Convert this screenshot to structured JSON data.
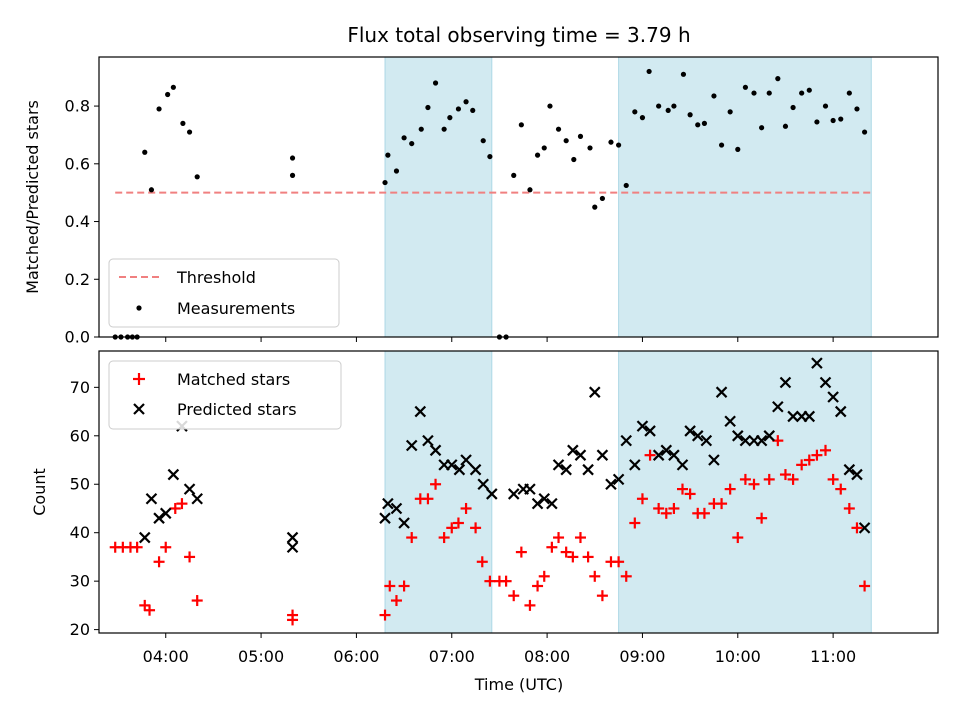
{
  "chart_data": [
    {
      "type": "scatter",
      "title": "Flux total observing time = 3.79 h",
      "ylabel": "Matched/Predicted stars",
      "xlim": [
        3.3,
        12.1
      ],
      "ylim": [
        0.0,
        0.97
      ],
      "x_ticks": [
        4,
        5,
        6,
        7,
        8,
        9,
        10,
        11
      ],
      "y_ticks": [
        0.0,
        0.2,
        0.4,
        0.6,
        0.8
      ],
      "y_tick_labels": [
        "0.0",
        "0.2",
        "0.4",
        "0.6",
        "0.8"
      ],
      "shaded_intervals": [
        [
          6.3,
          7.42
        ],
        [
          8.75,
          11.4
        ]
      ],
      "shade_color": "#add8e6",
      "legend": [
        "Threshold",
        "Measurements"
      ],
      "legend_location": "lower-left",
      "threshold": {
        "name": "Threshold",
        "value": 0.5,
        "x_range": [
          3.47,
          11.4
        ],
        "color": "#f08080"
      },
      "measurements": {
        "name": "Measurements",
        "color": "#000000",
        "points": [
          [
            3.47,
            0.0
          ],
          [
            3.53,
            0.0
          ],
          [
            3.6,
            0.0
          ],
          [
            3.65,
            0.0
          ],
          [
            3.7,
            0.0
          ],
          [
            3.78,
            0.64
          ],
          [
            3.85,
            0.51
          ],
          [
            3.93,
            0.79
          ],
          [
            4.02,
            0.84
          ],
          [
            4.08,
            0.865
          ],
          [
            4.18,
            0.74
          ],
          [
            4.25,
            0.71
          ],
          [
            4.33,
            0.555
          ],
          [
            5.33,
            0.62
          ],
          [
            5.33,
            0.56
          ],
          [
            6.3,
            0.535
          ],
          [
            6.33,
            0.63
          ],
          [
            6.42,
            0.575
          ],
          [
            6.5,
            0.69
          ],
          [
            6.58,
            0.67
          ],
          [
            6.68,
            0.72
          ],
          [
            6.75,
            0.795
          ],
          [
            6.83,
            0.88
          ],
          [
            6.92,
            0.72
          ],
          [
            6.98,
            0.76
          ],
          [
            7.07,
            0.79
          ],
          [
            7.15,
            0.815
          ],
          [
            7.22,
            0.785
          ],
          [
            7.33,
            0.68
          ],
          [
            7.4,
            0.625
          ],
          [
            7.5,
            0.0
          ],
          [
            7.57,
            0.0
          ],
          [
            7.65,
            0.56
          ],
          [
            7.73,
            0.735
          ],
          [
            7.82,
            0.51
          ],
          [
            7.9,
            0.63
          ],
          [
            7.97,
            0.655
          ],
          [
            8.03,
            0.8
          ],
          [
            8.12,
            0.72
          ],
          [
            8.2,
            0.68
          ],
          [
            8.28,
            0.615
          ],
          [
            8.35,
            0.695
          ],
          [
            8.45,
            0.655
          ],
          [
            8.5,
            0.45
          ],
          [
            8.58,
            0.48
          ],
          [
            8.67,
            0.675
          ],
          [
            8.75,
            0.665
          ],
          [
            8.83,
            0.525
          ],
          [
            8.92,
            0.78
          ],
          [
            9.0,
            0.76
          ],
          [
            9.07,
            0.92
          ],
          [
            9.17,
            0.8
          ],
          [
            9.27,
            0.785
          ],
          [
            9.33,
            0.8
          ],
          [
            9.43,
            0.91
          ],
          [
            9.5,
            0.77
          ],
          [
            9.58,
            0.735
          ],
          [
            9.65,
            0.74
          ],
          [
            9.75,
            0.835
          ],
          [
            9.83,
            0.665
          ],
          [
            9.92,
            0.78
          ],
          [
            10.0,
            0.65
          ],
          [
            10.08,
            0.865
          ],
          [
            10.17,
            0.845
          ],
          [
            10.25,
            0.725
          ],
          [
            10.33,
            0.845
          ],
          [
            10.42,
            0.895
          ],
          [
            10.5,
            0.73
          ],
          [
            10.58,
            0.795
          ],
          [
            10.67,
            0.845
          ],
          [
            10.75,
            0.855
          ],
          [
            10.83,
            0.745
          ],
          [
            10.92,
            0.8
          ],
          [
            11.0,
            0.75
          ],
          [
            11.08,
            0.755
          ],
          [
            11.17,
            0.845
          ],
          [
            11.25,
            0.79
          ],
          [
            11.33,
            0.71
          ]
        ]
      }
    },
    {
      "type": "scatter",
      "xlabel": "Time (UTC)",
      "ylabel": "Count",
      "xlim": [
        3.3,
        12.1
      ],
      "ylim": [
        19.3,
        77.5
      ],
      "x_ticks": [
        4,
        5,
        6,
        7,
        8,
        9,
        10,
        11
      ],
      "x_tick_labels": [
        "04:00",
        "05:00",
        "06:00",
        "07:00",
        "08:00",
        "09:00",
        "10:00",
        "11:00"
      ],
      "y_ticks": [
        20,
        30,
        40,
        50,
        60,
        70
      ],
      "y_tick_labels": [
        "20",
        "30",
        "40",
        "50",
        "60",
        "70"
      ],
      "shaded_intervals": [
        [
          6.3,
          7.42
        ],
        [
          8.75,
          11.4
        ]
      ],
      "shade_color": "#add8e6",
      "legend": [
        "Matched stars",
        "Predicted stars"
      ],
      "legend_location": "top-left",
      "series": [
        {
          "name": "Matched stars",
          "marker": "+",
          "color": "#ff0000",
          "points": [
            [
              3.47,
              37
            ],
            [
              3.55,
              37
            ],
            [
              3.63,
              37
            ],
            [
              3.7,
              37
            ],
            [
              3.78,
              25
            ],
            [
              3.83,
              24
            ],
            [
              3.93,
              34
            ],
            [
              4.0,
              37
            ],
            [
              4.1,
              45
            ],
            [
              4.17,
              46
            ],
            [
              4.25,
              35
            ],
            [
              4.33,
              26
            ],
            [
              5.33,
              23
            ],
            [
              5.33,
              22
            ],
            [
              6.3,
              23
            ],
            [
              6.35,
              29
            ],
            [
              6.42,
              26
            ],
            [
              6.5,
              29
            ],
            [
              6.58,
              39
            ],
            [
              6.67,
              47
            ],
            [
              6.75,
              47
            ],
            [
              6.83,
              50
            ],
            [
              6.92,
              39
            ],
            [
              7.0,
              41
            ],
            [
              7.07,
              42
            ],
            [
              7.15,
              45
            ],
            [
              7.25,
              41
            ],
            [
              7.32,
              34
            ],
            [
              7.4,
              30
            ],
            [
              7.5,
              30
            ],
            [
              7.57,
              30
            ],
            [
              7.65,
              27
            ],
            [
              7.73,
              36
            ],
            [
              7.82,
              25
            ],
            [
              7.9,
              29
            ],
            [
              7.97,
              31
            ],
            [
              8.05,
              37
            ],
            [
              8.12,
              39
            ],
            [
              8.2,
              36
            ],
            [
              8.27,
              35
            ],
            [
              8.35,
              39
            ],
            [
              8.43,
              35
            ],
            [
              8.5,
              31
            ],
            [
              8.58,
              27
            ],
            [
              8.67,
              34
            ],
            [
              8.75,
              34
            ],
            [
              8.83,
              31
            ],
            [
              8.92,
              42
            ],
            [
              9.0,
              47
            ],
            [
              9.08,
              56
            ],
            [
              9.17,
              45
            ],
            [
              9.25,
              44
            ],
            [
              9.33,
              45
            ],
            [
              9.42,
              49
            ],
            [
              9.5,
              48
            ],
            [
              9.58,
              44
            ],
            [
              9.65,
              44
            ],
            [
              9.75,
              46
            ],
            [
              9.83,
              46
            ],
            [
              9.92,
              49
            ],
            [
              10.0,
              39
            ],
            [
              10.08,
              51
            ],
            [
              10.17,
              50
            ],
            [
              10.25,
              43
            ],
            [
              10.33,
              51
            ],
            [
              10.42,
              59
            ],
            [
              10.5,
              52
            ],
            [
              10.58,
              51
            ],
            [
              10.67,
              54
            ],
            [
              10.75,
              55
            ],
            [
              10.83,
              56
            ],
            [
              10.92,
              57
            ],
            [
              11.0,
              51
            ],
            [
              11.08,
              49
            ],
            [
              11.17,
              45
            ],
            [
              11.25,
              41
            ],
            [
              11.33,
              29
            ]
          ]
        },
        {
          "name": "Predicted stars",
          "marker": "x",
          "color": "#000000",
          "points": [
            [
              3.78,
              39
            ],
            [
              3.85,
              47
            ],
            [
              3.93,
              43
            ],
            [
              4.0,
              44
            ],
            [
              4.08,
              52
            ],
            [
              4.17,
              62
            ],
            [
              4.25,
              49
            ],
            [
              4.33,
              47
            ],
            [
              5.33,
              39
            ],
            [
              5.33,
              37
            ],
            [
              6.3,
              43
            ],
            [
              6.33,
              46
            ],
            [
              6.42,
              45
            ],
            [
              6.5,
              42
            ],
            [
              6.58,
              58
            ],
            [
              6.67,
              65
            ],
            [
              6.75,
              59
            ],
            [
              6.83,
              57
            ],
            [
              6.92,
              54
            ],
            [
              7.0,
              54
            ],
            [
              7.08,
              53
            ],
            [
              7.15,
              55
            ],
            [
              7.25,
              53
            ],
            [
              7.33,
              50
            ],
            [
              7.42,
              48
            ],
            [
              7.65,
              48
            ],
            [
              7.75,
              49
            ],
            [
              7.82,
              49
            ],
            [
              7.9,
              46
            ],
            [
              7.97,
              47
            ],
            [
              8.05,
              46
            ],
            [
              8.12,
              54
            ],
            [
              8.2,
              53
            ],
            [
              8.27,
              57
            ],
            [
              8.35,
              56
            ],
            [
              8.43,
              53
            ],
            [
              8.5,
              69
            ],
            [
              8.58,
              56
            ],
            [
              8.67,
              50
            ],
            [
              8.75,
              51
            ],
            [
              8.83,
              59
            ],
            [
              8.92,
              54
            ],
            [
              9.0,
              62
            ],
            [
              9.08,
              61
            ],
            [
              9.17,
              56
            ],
            [
              9.25,
              57
            ],
            [
              9.33,
              56
            ],
            [
              9.42,
              54
            ],
            [
              9.5,
              61
            ],
            [
              9.58,
              60
            ],
            [
              9.67,
              59
            ],
            [
              9.75,
              55
            ],
            [
              9.83,
              69
            ],
            [
              9.92,
              63
            ],
            [
              10.0,
              60
            ],
            [
              10.08,
              59
            ],
            [
              10.17,
              59
            ],
            [
              10.25,
              59
            ],
            [
              10.33,
              60
            ],
            [
              10.42,
              66
            ],
            [
              10.5,
              71
            ],
            [
              10.58,
              64
            ],
            [
              10.67,
              64
            ],
            [
              10.75,
              64
            ],
            [
              10.83,
              75
            ],
            [
              10.92,
              71
            ],
            [
              11.0,
              68
            ],
            [
              11.08,
              65
            ],
            [
              11.17,
              53
            ],
            [
              11.25,
              52
            ],
            [
              11.33,
              41
            ]
          ]
        }
      ]
    }
  ]
}
